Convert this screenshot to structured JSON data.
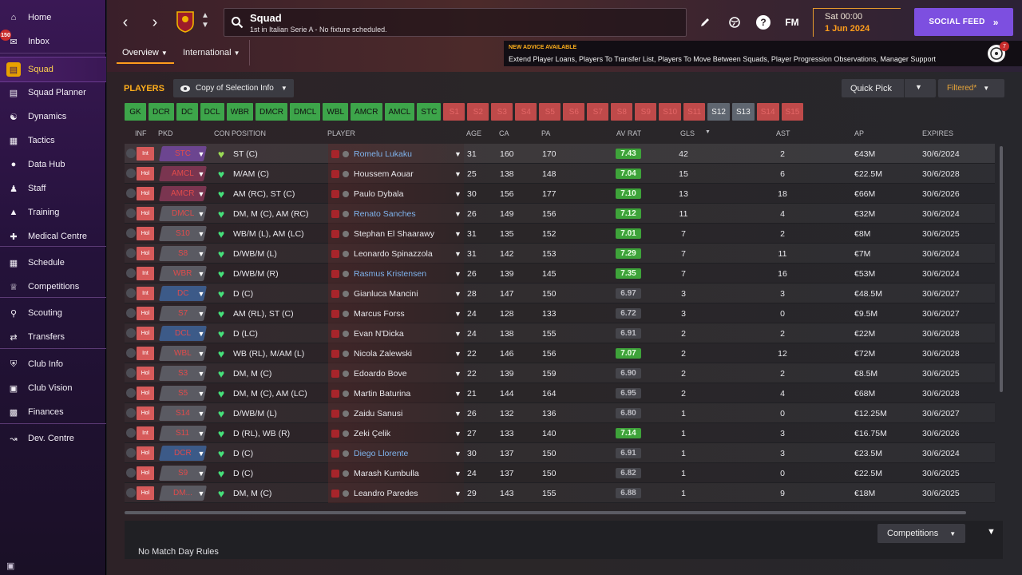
{
  "sidebar": {
    "items": [
      {
        "label": "Home",
        "icon": "home-icon"
      },
      {
        "label": "Inbox",
        "icon": "inbox-icon",
        "badge": "150"
      },
      {
        "label": "Squad",
        "icon": "squad-icon",
        "active": true
      },
      {
        "label": "Squad Planner",
        "icon": "clipboard-icon"
      },
      {
        "label": "Dynamics",
        "icon": "dynamics-icon"
      },
      {
        "label": "Tactics",
        "icon": "tactics-icon"
      },
      {
        "label": "Data Hub",
        "icon": "data-hub-icon"
      },
      {
        "label": "Staff",
        "icon": "staff-icon"
      },
      {
        "label": "Training",
        "icon": "training-icon"
      },
      {
        "label": "Medical Centre",
        "icon": "medical-icon"
      },
      {
        "label": "Schedule",
        "icon": "calendar-icon"
      },
      {
        "label": "Competitions",
        "icon": "trophy-icon"
      },
      {
        "label": "Scouting",
        "icon": "search-icon"
      },
      {
        "label": "Transfers",
        "icon": "transfer-icon"
      },
      {
        "label": "Club Info",
        "icon": "shield-icon"
      },
      {
        "label": "Club Vision",
        "icon": "briefcase-icon"
      },
      {
        "label": "Finances",
        "icon": "money-icon"
      },
      {
        "label": "Dev. Centre",
        "icon": "dev-centre-icon"
      }
    ]
  },
  "header": {
    "title": "Squad",
    "subtitle": "1st in Italian Serie A - No fixture scheduled.",
    "date_time": "Sat 00:00",
    "date_day": "1 Jun 2024",
    "social_feed": "SOCIAL FEED",
    "fm_label": "FM",
    "help_label": "?",
    "tabs": [
      "Overview",
      "International"
    ],
    "advice": {
      "title": "NEW ADVICE AVAILABLE",
      "text": "Extend Player Loans, Players To Transfer List, Players To Move Between Squads, Player Progression Observations, Manager Support",
      "badge": "7"
    }
  },
  "toolbar": {
    "players_label": "PLAYERS",
    "copy_selection": "Copy of Selection Info",
    "quick_pick": "Quick Pick",
    "filtered": "Filtered*"
  },
  "position_chips": [
    {
      "label": "GK",
      "state": "pos"
    },
    {
      "label": "DCR",
      "state": "pos"
    },
    {
      "label": "DC",
      "state": "pos"
    },
    {
      "label": "DCL",
      "state": "pos"
    },
    {
      "label": "WBR",
      "state": "pos"
    },
    {
      "label": "DMCR",
      "state": "pos"
    },
    {
      "label": "DMCL",
      "state": "pos"
    },
    {
      "label": "WBL",
      "state": "pos"
    },
    {
      "label": "AMCR",
      "state": "pos"
    },
    {
      "label": "AMCL",
      "state": "pos"
    },
    {
      "label": "STC",
      "state": "pos"
    },
    {
      "label": "S1",
      "state": "off"
    },
    {
      "label": "S2",
      "state": "off"
    },
    {
      "label": "S3",
      "state": "off"
    },
    {
      "label": "S4",
      "state": "off"
    },
    {
      "label": "S5",
      "state": "off"
    },
    {
      "label": "S6",
      "state": "off"
    },
    {
      "label": "S7",
      "state": "off"
    },
    {
      "label": "S8",
      "state": "off"
    },
    {
      "label": "S9",
      "state": "off"
    },
    {
      "label": "S10",
      "state": "off"
    },
    {
      "label": "S11",
      "state": "off"
    },
    {
      "label": "S12",
      "state": "on"
    },
    {
      "label": "S13",
      "state": "on"
    },
    {
      "label": "S14",
      "state": "off"
    },
    {
      "label": "S15",
      "state": "off"
    }
  ],
  "columns": {
    "inf": "INF",
    "pkd": "PKD",
    "con": "CON",
    "position": "POSITION",
    "player": "PLAYER",
    "age": "AGE",
    "ca": "CA",
    "pa": "PA",
    "av_rat": "AV RAT",
    "gls": "GLS",
    "ast": "AST",
    "ap": "AP",
    "expires": "EXPIRES"
  },
  "rows": [
    {
      "inf": "Int",
      "pkd": "STC",
      "pkd_color": "purple",
      "position": "ST (C)",
      "name": "Romelu Lukaku",
      "name_blue": true,
      "age": "31",
      "ca": "160",
      "pa": "170",
      "avr": "7.43",
      "avr_good": true,
      "gls": "42",
      "ast": "2",
      "ap": "€43M",
      "expires": "30/6/2024"
    },
    {
      "inf": "Hol",
      "pkd": "AMCL",
      "pkd_color": "red",
      "position": "M/AM (C)",
      "name": "Houssem Aouar",
      "name_blue": false,
      "age": "25",
      "ca": "138",
      "pa": "148",
      "avr": "7.04",
      "avr_good": true,
      "gls": "15",
      "ast": "6",
      "ap": "€22.5M",
      "expires": "30/6/2028"
    },
    {
      "inf": "Hol",
      "pkd": "AMCR",
      "pkd_color": "red",
      "position": "AM (RC), ST (C)",
      "name": "Paulo Dybala",
      "name_blue": false,
      "age": "30",
      "ca": "156",
      "pa": "177",
      "avr": "7.10",
      "avr_good": true,
      "gls": "13",
      "ast": "18",
      "ap": "€66M",
      "expires": "30/6/2026"
    },
    {
      "inf": "Hol",
      "pkd": "DMCL",
      "pkd_color": "grey",
      "position": "DM, M (C), AM (RC)",
      "name": "Renato Sanches",
      "name_blue": true,
      "age": "26",
      "ca": "149",
      "pa": "156",
      "avr": "7.12",
      "avr_good": true,
      "gls": "11",
      "ast": "4",
      "ap": "€32M",
      "expires": "30/6/2024"
    },
    {
      "inf": "Hol",
      "pkd": "S10",
      "pkd_color": "grey",
      "position": "WB/M (L), AM (LC)",
      "name": "Stephan El Shaarawy",
      "name_blue": false,
      "age": "31",
      "ca": "135",
      "pa": "152",
      "avr": "7.01",
      "avr_good": true,
      "gls": "7",
      "ast": "2",
      "ap": "€8M",
      "expires": "30/6/2025"
    },
    {
      "inf": "Hol",
      "pkd": "S8",
      "pkd_color": "grey",
      "position": "D/WB/M (L)",
      "name": "Leonardo Spinazzola",
      "name_blue": false,
      "age": "31",
      "ca": "142",
      "pa": "153",
      "avr": "7.29",
      "avr_good": true,
      "gls": "7",
      "ast": "11",
      "ap": "€7M",
      "expires": "30/6/2024"
    },
    {
      "inf": "Int",
      "pkd": "WBR",
      "pkd_color": "grey",
      "position": "D/WB/M (R)",
      "name": "Rasmus Kristensen",
      "name_blue": true,
      "age": "26",
      "ca": "139",
      "pa": "145",
      "avr": "7.35",
      "avr_good": true,
      "gls": "7",
      "ast": "16",
      "ap": "€53M",
      "expires": "30/6/2024"
    },
    {
      "inf": "Int",
      "pkd": "DC",
      "pkd_color": "blue",
      "position": "D (C)",
      "name": "Gianluca Mancini",
      "name_blue": false,
      "age": "28",
      "ca": "147",
      "pa": "150",
      "avr": "6.97",
      "avr_good": false,
      "gls": "3",
      "ast": "3",
      "ap": "€48.5M",
      "expires": "30/6/2027"
    },
    {
      "inf": "Hol",
      "pkd": "S7",
      "pkd_color": "grey",
      "position": "AM (RL), ST (C)",
      "name": "Marcus Forss",
      "name_blue": false,
      "age": "24",
      "ca": "128",
      "pa": "133",
      "avr": "6.72",
      "avr_good": false,
      "gls": "3",
      "ast": "0",
      "ap": "€9.5M",
      "expires": "30/6/2027"
    },
    {
      "inf": "Hol",
      "pkd": "DCL",
      "pkd_color": "blue",
      "position": "D (LC)",
      "name": "Evan N'Dicka",
      "name_blue": false,
      "age": "24",
      "ca": "138",
      "pa": "155",
      "avr": "6.91",
      "avr_good": false,
      "gls": "2",
      "ast": "2",
      "ap": "€22M",
      "expires": "30/6/2028"
    },
    {
      "inf": "Int",
      "pkd": "WBL",
      "pkd_color": "grey",
      "position": "WB (RL), M/AM (L)",
      "name": "Nicola Zalewski",
      "name_blue": false,
      "age": "22",
      "ca": "146",
      "pa": "156",
      "avr": "7.07",
      "avr_good": true,
      "gls": "2",
      "ast": "12",
      "ap": "€72M",
      "expires": "30/6/2028"
    },
    {
      "inf": "Hol",
      "pkd": "S3",
      "pkd_color": "grey",
      "position": "DM, M (C)",
      "name": "Edoardo Bove",
      "name_blue": false,
      "age": "22",
      "ca": "139",
      "pa": "159",
      "avr": "6.90",
      "avr_good": false,
      "gls": "2",
      "ast": "2",
      "ap": "€8.5M",
      "expires": "30/6/2025"
    },
    {
      "inf": "Hol",
      "pkd": "S5",
      "pkd_color": "grey",
      "position": "DM, M (C), AM (LC)",
      "name": "Martin Baturina",
      "name_blue": false,
      "age": "21",
      "ca": "144",
      "pa": "164",
      "avr": "6.95",
      "avr_good": false,
      "gls": "2",
      "ast": "4",
      "ap": "€68M",
      "expires": "30/6/2028"
    },
    {
      "inf": "Hol",
      "pkd": "S14",
      "pkd_color": "grey",
      "position": "D/WB/M (L)",
      "name": "Zaidu Sanusi",
      "name_blue": false,
      "age": "26",
      "ca": "132",
      "pa": "136",
      "avr": "6.80",
      "avr_good": false,
      "gls": "1",
      "ast": "0",
      "ap": "€12.25M",
      "expires": "30/6/2027"
    },
    {
      "inf": "Int",
      "pkd": "S11",
      "pkd_color": "grey",
      "position": "D (RL), WB (R)",
      "name": "Zeki Çelik",
      "name_blue": false,
      "age": "27",
      "ca": "133",
      "pa": "140",
      "avr": "7.14",
      "avr_good": true,
      "gls": "1",
      "ast": "3",
      "ap": "€16.75M",
      "expires": "30/6/2026"
    },
    {
      "inf": "Hol",
      "pkd": "DCR",
      "pkd_color": "blue",
      "position": "D (C)",
      "name": "Diego Llorente",
      "name_blue": true,
      "age": "30",
      "ca": "137",
      "pa": "150",
      "avr": "6.91",
      "avr_good": false,
      "gls": "1",
      "ast": "3",
      "ap": "€23.5M",
      "expires": "30/6/2024"
    },
    {
      "inf": "Hol",
      "pkd": "S9",
      "pkd_color": "grey",
      "position": "D (C)",
      "name": "Marash Kumbulla",
      "name_blue": false,
      "age": "24",
      "ca": "137",
      "pa": "150",
      "avr": "6.82",
      "avr_good": false,
      "gls": "1",
      "ast": "0",
      "ap": "€22.5M",
      "expires": "30/6/2025"
    },
    {
      "inf": "Hol",
      "pkd": "DM...",
      "pkd_color": "grey",
      "position": "DM, M (C)",
      "name": "Leandro Paredes",
      "name_blue": false,
      "age": "29",
      "ca": "143",
      "pa": "155",
      "avr": "6.88",
      "avr_good": false,
      "gls": "1",
      "ast": "9",
      "ap": "€18M",
      "expires": "30/6/2025"
    }
  ],
  "bottom": {
    "competitions": "Competitions",
    "no_match_day_rules": "No Match Day Rules"
  },
  "colors": {
    "accent_orange": "#ffae1c",
    "social_purple": "#7d4fe0",
    "rating_green": "#3ea33a"
  }
}
